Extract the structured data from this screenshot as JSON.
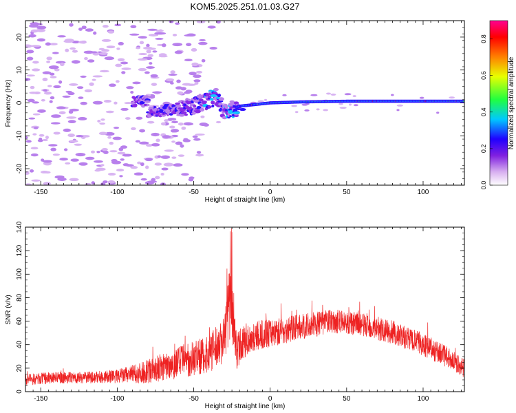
{
  "title": "KOM5.2025.251.01.03.G27",
  "colors": {
    "snr_line": "#ee2222",
    "cmap": [
      "#ffffff",
      "#d8b0f0",
      "#8020e0",
      "#2000ff",
      "#00c8ff",
      "#20ff40",
      "#e8ff00",
      "#ff8000",
      "#ff0000",
      "#ff0090"
    ]
  },
  "chart_data": [
    {
      "type": "heatmap",
      "title": "KOM5.2025.251.01.03.G27",
      "xlabel": "Height of straight line (km)",
      "ylabel": "Frequency (Hz)",
      "xlim": [
        -160,
        127
      ],
      "ylim": [
        -25,
        25
      ],
      "xticks": [
        -150,
        -100,
        -50,
        0,
        50,
        100
      ],
      "yticks": [
        -20,
        -10,
        0,
        10,
        20
      ],
      "colorbar": {
        "label": "Normalized spectral amplitude",
        "range": [
          0,
          0.9
        ],
        "ticks": [
          "0.0",
          "0.2",
          "0.4",
          "0.6",
          "0.8"
        ]
      },
      "ridge": {
        "description_points_x": [
          -80,
          -65,
          -50,
          -40,
          -35,
          -30,
          -25,
          -20,
          -10,
          0,
          20,
          50,
          100,
          127
        ],
        "description_points_freq": [
          -3,
          -2,
          -1,
          1,
          2,
          -3,
          -2,
          -1,
          -0.5,
          0,
          0.3,
          0.5,
          0.5,
          0.5
        ]
      }
    },
    {
      "type": "line",
      "xlabel": "Height of straight line (km)",
      "ylabel": "SNR (v/v)",
      "xlim": [
        -160,
        127
      ],
      "ylim": [
        0,
        140
      ],
      "xticks": [
        -150,
        -100,
        -50,
        0,
        50,
        100
      ],
      "yticks": [
        0,
        20,
        40,
        60,
        80,
        100,
        120,
        140
      ],
      "series": [
        {
          "name": "SNR",
          "envelope_x": [
            -160,
            -140,
            -120,
            -100,
            -80,
            -60,
            -40,
            -30,
            -26,
            -22,
            -15,
            0,
            20,
            40,
            60,
            80,
            100,
            115,
            127
          ],
          "mean": [
            10,
            12,
            12,
            13,
            17,
            25,
            32,
            45,
            80,
            35,
            45,
            50,
            55,
            60,
            57,
            50,
            40,
            30,
            20
          ],
          "spread": [
            5,
            5,
            5,
            6,
            10,
            14,
            16,
            20,
            40,
            16,
            14,
            12,
            11,
            10,
            10,
            10,
            10,
            9,
            8
          ]
        }
      ]
    }
  ]
}
